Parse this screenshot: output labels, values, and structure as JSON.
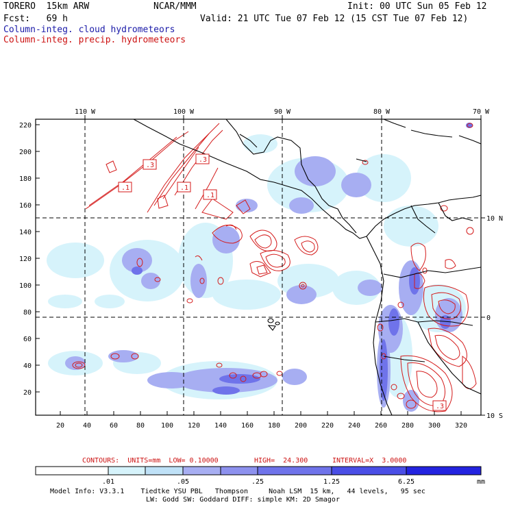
{
  "header": {
    "model": "TORERO  15km ARW",
    "org": "NCAR/MMM",
    "init": "Init: 00 UTC Sun 05 Feb 12",
    "fcst": "Fcst:   69 h",
    "valid": "Valid: 21 UTC Tue 07 Feb 12 (15 CST Tue 07 Feb 12)",
    "field_cloud": "Column-integ. cloud hydrometeors",
    "field_precip": "Column-integ. precip. hydrometeors"
  },
  "map": {
    "lon_labels": [
      "110 W",
      "100 W",
      "90 W",
      "80 W",
      "70 W"
    ],
    "lat_labels": [
      "10 N",
      "0",
      "10 S"
    ],
    "y_ticks": [
      "220",
      "200",
      "180",
      "160",
      "140",
      "120",
      "100",
      "80",
      "60",
      "40",
      "20"
    ],
    "x_ticks": [
      "20",
      "40",
      "60",
      "80",
      "100",
      "120",
      "140",
      "160",
      "180",
      "200",
      "220",
      "240",
      "260",
      "280",
      "300",
      "320"
    ],
    "contour_labels": [
      ".3",
      ".3",
      ".1",
      ".1",
      ".1",
      ".3"
    ],
    "colors": {
      "cloud_light": "#d6f3fb",
      "cloud_mid": "#a7aef2",
      "cloud_dark": "#6f73ea",
      "contour": "#d41a1a",
      "coast": "#000000"
    }
  },
  "contours_caption": {
    "contours": "CONTOURS:  UNITS=mm  LOW= 0.10000",
    "high": "HIGH=  24.300",
    "interval": "INTERVAL=X  3.0000"
  },
  "legend": {
    "labels": [
      ".01",
      ".05",
      ".25",
      "1.25",
      "6.25"
    ],
    "unit": "mm",
    "colors": [
      "#ffffff",
      "#d6f3fb",
      "#bfe1f7",
      "#a7aef2",
      "#8d91ee",
      "#6f73ea",
      "#4a4ee6",
      "#2323e0"
    ]
  },
  "footer": {
    "line1": "Model Info: V3.3.1    Tiedtke YSU PBL   Thompson     Noah LSM  15 km,   44 levels,   95 sec",
    "line2": "LW: Godd SW: Goddard DIFF: simple KM: 2D Smagor"
  }
}
